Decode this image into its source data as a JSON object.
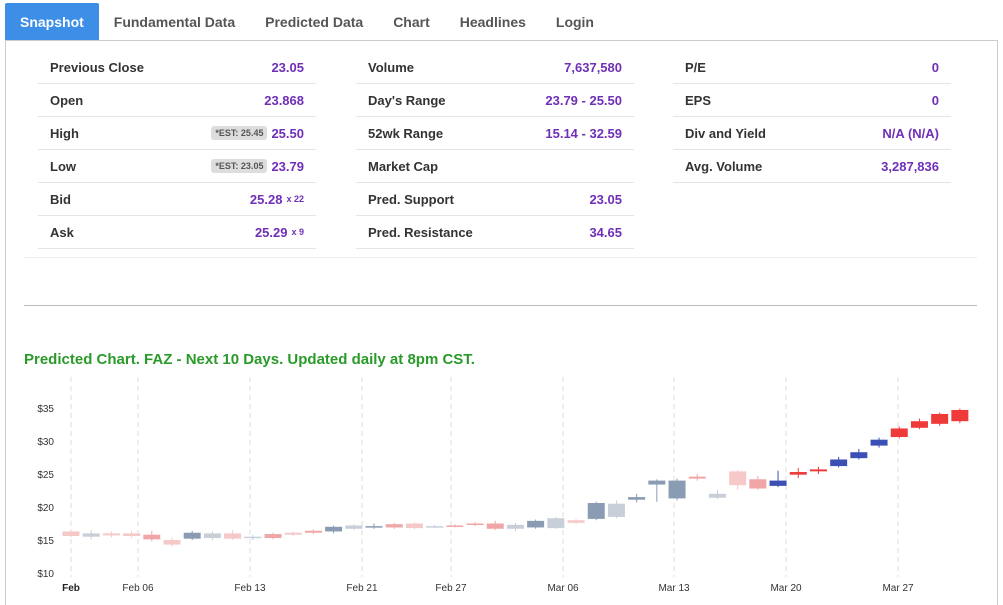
{
  "tabs": [
    "Snapshot",
    "Fundamental Data",
    "Predicted Data",
    "Chart",
    "Headlines",
    "Login"
  ],
  "snapshot": {
    "col1": [
      {
        "label": "Previous Close",
        "value": "23.05"
      },
      {
        "label": "Open",
        "value": "23.868"
      },
      {
        "label": "High",
        "est": "*EST: 25.45",
        "value": "25.50"
      },
      {
        "label": "Low",
        "est": "*EST: 23.05",
        "value": "23.79"
      },
      {
        "label": "Bid",
        "value": "25.28",
        "size": "x 22"
      },
      {
        "label": "Ask",
        "value": "25.29",
        "size": "x 9"
      }
    ],
    "col2": [
      {
        "label": "Volume",
        "value": "7,637,580"
      },
      {
        "label": "Day's Range",
        "value": "23.79 - 25.50"
      },
      {
        "label": "52wk Range",
        "value": "15.14 - 32.59"
      },
      {
        "label": "Market Cap",
        "value": ""
      },
      {
        "label": "Pred. Support",
        "value": "23.05"
      },
      {
        "label": "Pred. Resistance",
        "value": "34.65"
      }
    ],
    "col3": [
      {
        "label": "P/E",
        "value": "0"
      },
      {
        "label": "EPS",
        "value": "0"
      },
      {
        "label": "Div and Yield",
        "value": "N/A (N/A)"
      },
      {
        "label": "Avg. Volume",
        "value": "3,287,836"
      }
    ]
  },
  "chart_title": "Predicted Chart. FAZ - Next 10 Days. Updated daily at 8pm CST.",
  "chart_data": {
    "type": "candlestick",
    "y_ticks": [
      "$35",
      "$30",
      "$25",
      "$20",
      "$15",
      "$10"
    ],
    "ylim": [
      10,
      37
    ],
    "x_ticks": [
      "Feb",
      "Feb 06",
      "Feb 13",
      "Feb 21",
      "Feb 27",
      "Mar 06",
      "Mar 13",
      "Mar 20",
      "Mar 27"
    ],
    "grid": "vertical dashed",
    "colors": {
      "up_hist": "#8a9bb4",
      "down_hist": "#f0a6a6",
      "up_hist_light": "#c9cfd9",
      "down_hist_light": "#f6c9c9",
      "up_pred": "#3b50b5",
      "down_pred": "#ef3a3a"
    },
    "candles": [
      {
        "o": 15.6,
        "c": 16.3,
        "h": 16.6,
        "l": 15.4,
        "t": "dl"
      },
      {
        "o": 16.0,
        "c": 15.5,
        "h": 16.5,
        "l": 15.1,
        "t": "ul"
      },
      {
        "o": 15.7,
        "c": 16.0,
        "h": 16.3,
        "l": 15.4,
        "t": "dl"
      },
      {
        "o": 15.6,
        "c": 16.0,
        "h": 16.4,
        "l": 15.3,
        "t": "dl"
      },
      {
        "o": 15.8,
        "c": 15.1,
        "h": 16.4,
        "l": 14.8,
        "t": "d"
      },
      {
        "o": 15.0,
        "c": 14.3,
        "h": 15.4,
        "l": 14.0,
        "t": "dl"
      },
      {
        "o": 15.2,
        "c": 16.1,
        "h": 16.4,
        "l": 15.0,
        "t": "u"
      },
      {
        "o": 15.3,
        "c": 16.0,
        "h": 16.3,
        "l": 15.0,
        "t": "ul"
      },
      {
        "o": 16.0,
        "c": 15.2,
        "h": 16.5,
        "l": 15.0,
        "t": "dl"
      },
      {
        "o": 15.3,
        "c": 15.5,
        "h": 15.8,
        "l": 15.0,
        "t": "ul"
      },
      {
        "o": 15.3,
        "c": 15.9,
        "h": 16.1,
        "l": 15.1,
        "t": "d"
      },
      {
        "o": 15.8,
        "c": 16.1,
        "h": 16.3,
        "l": 15.6,
        "t": "dl"
      },
      {
        "o": 16.1,
        "c": 16.4,
        "h": 16.6,
        "l": 15.9,
        "t": "d"
      },
      {
        "o": 16.3,
        "c": 17.0,
        "h": 17.2,
        "l": 16.0,
        "t": "u"
      },
      {
        "o": 16.7,
        "c": 17.2,
        "h": 17.4,
        "l": 16.5,
        "t": "ul"
      },
      {
        "o": 16.9,
        "c": 17.1,
        "h": 17.5,
        "l": 16.7,
        "t": "u"
      },
      {
        "o": 16.9,
        "c": 17.4,
        "h": 17.6,
        "l": 16.7,
        "t": "d"
      },
      {
        "o": 16.8,
        "c": 17.5,
        "h": 17.7,
        "l": 16.6,
        "t": "dl"
      },
      {
        "o": 17.0,
        "c": 17.1,
        "h": 17.3,
        "l": 16.8,
        "t": "ul"
      },
      {
        "o": 17.0,
        "c": 17.2,
        "h": 17.4,
        "l": 16.9,
        "t": "d"
      },
      {
        "o": 17.3,
        "c": 17.5,
        "h": 17.7,
        "l": 17.1,
        "t": "d"
      },
      {
        "o": 16.7,
        "c": 17.5,
        "h": 17.9,
        "l": 16.5,
        "t": "d"
      },
      {
        "o": 16.7,
        "c": 17.3,
        "h": 17.6,
        "l": 16.3,
        "t": "ul"
      },
      {
        "o": 16.9,
        "c": 17.9,
        "h": 18.1,
        "l": 16.7,
        "t": "u"
      },
      {
        "o": 16.8,
        "c": 18.3,
        "h": 18.5,
        "l": 16.7,
        "t": "ul"
      },
      {
        "o": 17.6,
        "c": 18.0,
        "h": 18.2,
        "l": 17.4,
        "t": "dl"
      },
      {
        "o": 18.2,
        "c": 20.6,
        "h": 20.8,
        "l": 18.0,
        "t": "u"
      },
      {
        "o": 18.5,
        "c": 20.5,
        "h": 21.0,
        "l": 18.3,
        "t": "ul"
      },
      {
        "o": 21.1,
        "c": 21.5,
        "h": 22.0,
        "l": 20.7,
        "t": "u"
      },
      {
        "o": 23.4,
        "c": 24.0,
        "h": 24.2,
        "l": 20.8,
        "t": "u"
      },
      {
        "o": 21.3,
        "c": 24.0,
        "h": 24.3,
        "l": 21.0,
        "t": "u"
      },
      {
        "o": 24.3,
        "c": 24.6,
        "h": 25.0,
        "l": 24.0,
        "t": "d"
      },
      {
        "o": 21.4,
        "c": 22.0,
        "h": 22.6,
        "l": 21.2,
        "t": "ul"
      },
      {
        "o": 23.3,
        "c": 25.4,
        "h": 25.6,
        "l": 22.6,
        "t": "dl"
      },
      {
        "o": 22.8,
        "c": 24.2,
        "h": 24.7,
        "l": 22.6,
        "t": "d"
      },
      {
        "o": 23.2,
        "c": 24.0,
        "h": 25.5,
        "l": 23.0,
        "t": "up"
      },
      {
        "o": 24.9,
        "c": 25.3,
        "h": 25.9,
        "l": 24.4,
        "t": "dp"
      },
      {
        "o": 25.4,
        "c": 25.7,
        "h": 26.1,
        "l": 25.0,
        "t": "dp"
      },
      {
        "o": 26.2,
        "c": 27.2,
        "h": 27.6,
        "l": 26.0,
        "t": "up"
      },
      {
        "o": 27.4,
        "c": 28.3,
        "h": 28.8,
        "l": 27.2,
        "t": "up"
      },
      {
        "o": 29.3,
        "c": 30.2,
        "h": 30.5,
        "l": 29.0,
        "t": "up"
      },
      {
        "o": 30.6,
        "c": 31.9,
        "h": 32.2,
        "l": 30.4,
        "t": "dp"
      },
      {
        "o": 32.0,
        "c": 33.0,
        "h": 33.4,
        "l": 31.8,
        "t": "dp"
      },
      {
        "o": 32.6,
        "c": 34.1,
        "h": 34.3,
        "l": 32.3,
        "t": "dp"
      },
      {
        "o": 33.0,
        "c": 34.7,
        "h": 34.9,
        "l": 32.7,
        "t": "dp"
      }
    ]
  }
}
